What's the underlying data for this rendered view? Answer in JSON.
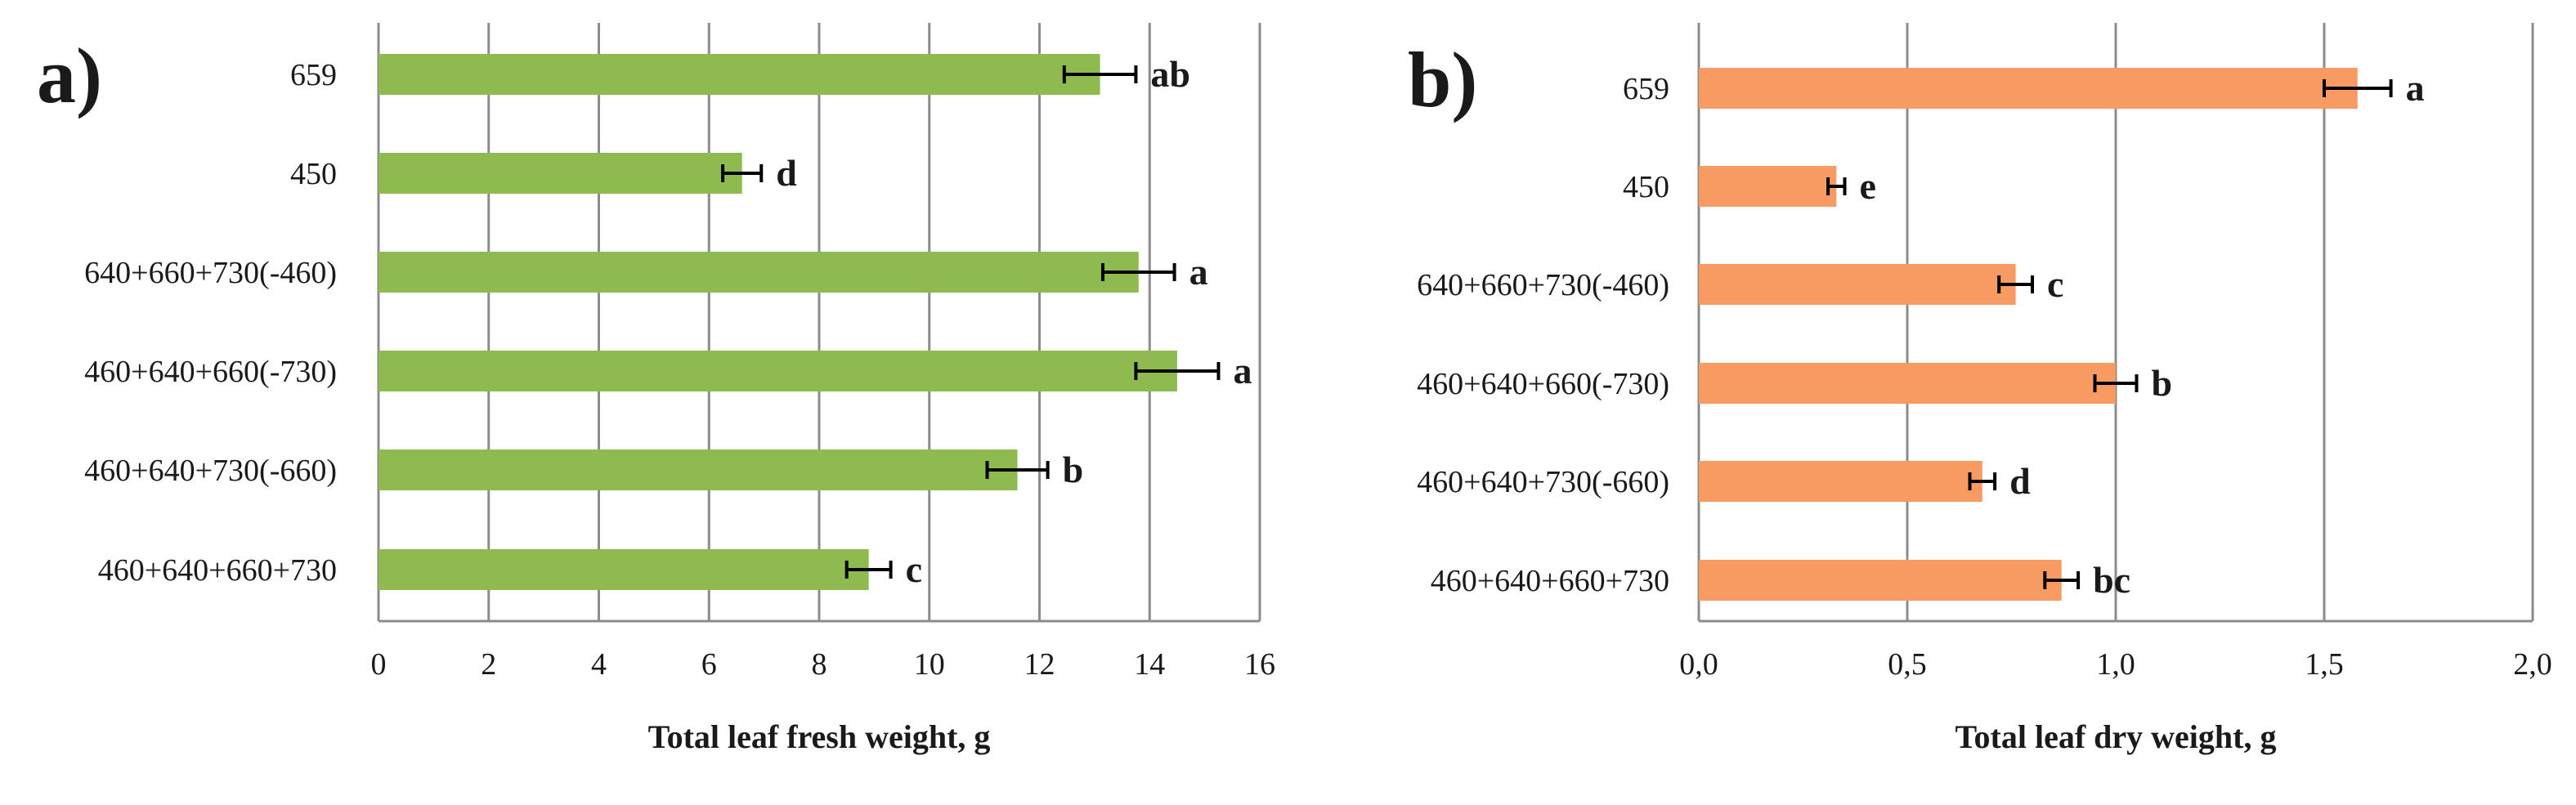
{
  "chart_data": [
    {
      "type": "bar",
      "orientation": "horizontal",
      "panel_label": "a)",
      "categories": [
        "659",
        "450",
        "640+660+730(-460)",
        "460+640+660(-730)",
        "460+640+730(-660)",
        "460+640+660+730"
      ],
      "values": [
        13.1,
        6.6,
        13.8,
        14.5,
        11.6,
        8.9
      ],
      "errors": [
        0.65,
        0.35,
        0.65,
        0.75,
        0.55,
        0.4
      ],
      "significance": [
        "ab",
        "d",
        "a",
        "a",
        "b",
        "c"
      ],
      "xlabel": "Total leaf fresh weight, g",
      "xlim": [
        0,
        16
      ],
      "ticks": [
        0,
        2,
        4,
        6,
        8,
        10,
        12,
        14,
        16
      ],
      "tick_labels": [
        "0",
        "2",
        "4",
        "6",
        "8",
        "10",
        "12",
        "14",
        "16"
      ],
      "grid": true,
      "color": "#8dbb4f"
    },
    {
      "type": "bar",
      "orientation": "horizontal",
      "panel_label": "b)",
      "categories": [
        "659",
        "450",
        "640+660+730(-460)",
        "460+640+660(-730)",
        "460+640+730(-660)",
        "460+640+660+730"
      ],
      "values": [
        1.58,
        0.33,
        0.76,
        1.0,
        0.68,
        0.87
      ],
      "errors": [
        0.08,
        0.02,
        0.04,
        0.05,
        0.03,
        0.04
      ],
      "significance": [
        "a",
        "e",
        "c",
        "b",
        "d",
        "bc"
      ],
      "xlabel": "Total leaf dry weight, g",
      "xlim": [
        0,
        2
      ],
      "ticks": [
        0,
        0.5,
        1,
        1.5,
        2
      ],
      "tick_labels": [
        "0,0",
        "0,5",
        "1,0",
        "1,5",
        "2,0"
      ],
      "grid": true,
      "color": "#f79b62"
    }
  ]
}
